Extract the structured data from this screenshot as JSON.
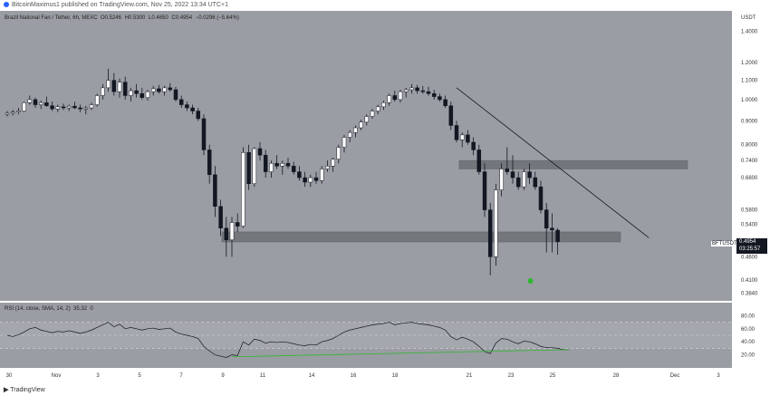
{
  "header": {
    "published_text": "BitcoinMaximus1 published on TradingView.com, Nov 25, 2022 13:34 UTC+1"
  },
  "legend": {
    "title": "Brazil National Fan / Tether, 6h, MEXC",
    "open_label": "O",
    "open_value": "0.5246",
    "high_label": "H",
    "high_value": "0.5300",
    "low_label": "L",
    "low_value": "0.4650",
    "close_label": "C",
    "close_value": "0.4954",
    "change_value": "−0.0296 (−5.64%)"
  },
  "rsi_legend": {
    "title": "RSI (14, close, SMA, 14, 2)",
    "value": "35.32",
    "value2": "0"
  },
  "price_axis": {
    "unit": "USDT",
    "ticks": [
      "1.4000",
      "1.2000",
      "1.1000",
      "1.0000",
      "0.9000",
      "0.8000",
      "0.7400",
      "0.6800",
      "0.5800",
      "0.5400",
      "0.4600",
      "0.4100",
      "0.3840"
    ]
  },
  "rsi_axis": {
    "ticks": [
      "80.00",
      "60.00",
      "40.00",
      "20.00"
    ]
  },
  "time_axis": {
    "ticks": [
      "30",
      "Nov",
      "3",
      "5",
      "7",
      "9",
      "11",
      "14",
      "16",
      "18",
      "21",
      "23",
      "25",
      "28",
      "Dec",
      "3"
    ]
  },
  "price_tag": {
    "symbol": "BFTUSDT",
    "price": "0.4954",
    "countdown": "03:25:57"
  },
  "footer": {
    "brand": "TradingView"
  },
  "colors": {
    "background": "#9a9da3",
    "bull_candle": "#ffffff",
    "bear_candle": "#131722",
    "zone": "#6f7277",
    "trendline": "#131722",
    "rsi_line": "#131722",
    "rsi_trend": "#2eb82e",
    "marker": "#2eb82e"
  },
  "chart_data": {
    "type": "candlestick",
    "title": "Brazil National Fan / Tether, 6h, MEXC",
    "y_scale": "log",
    "ylim": [
      0.37,
      1.55
    ],
    "x_tick_labels": [
      "30",
      "Nov",
      "3",
      "5",
      "7",
      "9",
      "11",
      "14",
      "16",
      "18",
      "21",
      "23",
      "25",
      "28",
      "Dec",
      "3"
    ],
    "candles": [
      {
        "o": 0.93,
        "h": 0.945,
        "l": 0.92,
        "c": 0.935
      },
      {
        "o": 0.935,
        "h": 0.95,
        "l": 0.925,
        "c": 0.94
      },
      {
        "o": 0.94,
        "h": 0.96,
        "l": 0.93,
        "c": 0.945
      },
      {
        "o": 0.945,
        "h": 0.99,
        "l": 0.94,
        "c": 0.985
      },
      {
        "o": 0.985,
        "h": 1.02,
        "l": 0.975,
        "c": 1.0
      },
      {
        "o": 1.0,
        "h": 1.01,
        "l": 0.96,
        "c": 0.975
      },
      {
        "o": 0.975,
        "h": 0.995,
        "l": 0.955,
        "c": 0.985
      },
      {
        "o": 0.985,
        "h": 1.015,
        "l": 0.965,
        "c": 0.97
      },
      {
        "o": 0.97,
        "h": 0.99,
        "l": 0.945,
        "c": 0.955
      },
      {
        "o": 0.955,
        "h": 0.975,
        "l": 0.94,
        "c": 0.965
      },
      {
        "o": 0.965,
        "h": 0.98,
        "l": 0.95,
        "c": 0.96
      },
      {
        "o": 0.96,
        "h": 0.975,
        "l": 0.945,
        "c": 0.968
      },
      {
        "o": 0.968,
        "h": 0.99,
        "l": 0.955,
        "c": 0.96
      },
      {
        "o": 0.96,
        "h": 0.975,
        "l": 0.94,
        "c": 0.955
      },
      {
        "o": 0.955,
        "h": 0.97,
        "l": 0.93,
        "c": 0.96
      },
      {
        "o": 0.96,
        "h": 0.985,
        "l": 0.95,
        "c": 0.975
      },
      {
        "o": 0.975,
        "h": 1.03,
        "l": 0.965,
        "c": 1.02
      },
      {
        "o": 1.02,
        "h": 1.08,
        "l": 1.0,
        "c": 1.06
      },
      {
        "o": 1.06,
        "h": 1.165,
        "l": 1.04,
        "c": 1.1
      },
      {
        "o": 1.1,
        "h": 1.14,
        "l": 1.02,
        "c": 1.04
      },
      {
        "o": 1.04,
        "h": 1.11,
        "l": 1.01,
        "c": 1.09
      },
      {
        "o": 1.09,
        "h": 1.12,
        "l": 1.0,
        "c": 1.02
      },
      {
        "o": 1.02,
        "h": 1.06,
        "l": 0.99,
        "c": 1.045
      },
      {
        "o": 1.045,
        "h": 1.08,
        "l": 1.01,
        "c": 1.03
      },
      {
        "o": 1.03,
        "h": 1.06,
        "l": 1.0,
        "c": 1.01
      },
      {
        "o": 1.01,
        "h": 1.05,
        "l": 0.995,
        "c": 1.04
      },
      {
        "o": 1.04,
        "h": 1.07,
        "l": 1.02,
        "c": 1.055
      },
      {
        "o": 1.055,
        "h": 1.075,
        "l": 1.03,
        "c": 1.04
      },
      {
        "o": 1.04,
        "h": 1.07,
        "l": 1.02,
        "c": 1.06
      },
      {
        "o": 1.06,
        "h": 1.085,
        "l": 1.04,
        "c": 1.05
      },
      {
        "o": 1.05,
        "h": 1.065,
        "l": 0.99,
        "c": 1.0
      },
      {
        "o": 1.0,
        "h": 1.02,
        "l": 0.96,
        "c": 0.975
      },
      {
        "o": 0.975,
        "h": 0.99,
        "l": 0.945,
        "c": 0.96
      },
      {
        "o": 0.96,
        "h": 0.975,
        "l": 0.93,
        "c": 0.945
      },
      {
        "o": 0.945,
        "h": 0.96,
        "l": 0.9,
        "c": 0.91
      },
      {
        "o": 0.91,
        "h": 0.93,
        "l": 0.76,
        "c": 0.78
      },
      {
        "o": 0.78,
        "h": 0.8,
        "l": 0.66,
        "c": 0.69
      },
      {
        "o": 0.69,
        "h": 0.72,
        "l": 0.56,
        "c": 0.59
      },
      {
        "o": 0.59,
        "h": 0.61,
        "l": 0.51,
        "c": 0.53
      },
      {
        "o": 0.53,
        "h": 0.56,
        "l": 0.46,
        "c": 0.5
      },
      {
        "o": 0.5,
        "h": 0.56,
        "l": 0.46,
        "c": 0.545
      },
      {
        "o": 0.545,
        "h": 0.57,
        "l": 0.52,
        "c": 0.535
      },
      {
        "o": 0.535,
        "h": 0.79,
        "l": 0.53,
        "c": 0.77
      },
      {
        "o": 0.77,
        "h": 0.8,
        "l": 0.64,
        "c": 0.66
      },
      {
        "o": 0.66,
        "h": 0.79,
        "l": 0.65,
        "c": 0.785
      },
      {
        "o": 0.785,
        "h": 0.81,
        "l": 0.74,
        "c": 0.76
      },
      {
        "o": 0.76,
        "h": 0.78,
        "l": 0.68,
        "c": 0.7
      },
      {
        "o": 0.7,
        "h": 0.74,
        "l": 0.68,
        "c": 0.73
      },
      {
        "o": 0.73,
        "h": 0.76,
        "l": 0.71,
        "c": 0.72
      },
      {
        "o": 0.72,
        "h": 0.74,
        "l": 0.69,
        "c": 0.73
      },
      {
        "o": 0.73,
        "h": 0.75,
        "l": 0.71,
        "c": 0.72
      },
      {
        "o": 0.72,
        "h": 0.735,
        "l": 0.69,
        "c": 0.7
      },
      {
        "o": 0.7,
        "h": 0.72,
        "l": 0.67,
        "c": 0.68
      },
      {
        "o": 0.68,
        "h": 0.7,
        "l": 0.65,
        "c": 0.665
      },
      {
        "o": 0.665,
        "h": 0.69,
        "l": 0.65,
        "c": 0.68
      },
      {
        "o": 0.68,
        "h": 0.7,
        "l": 0.66,
        "c": 0.67
      },
      {
        "o": 0.67,
        "h": 0.72,
        "l": 0.66,
        "c": 0.71
      },
      {
        "o": 0.71,
        "h": 0.74,
        "l": 0.7,
        "c": 0.72
      },
      {
        "o": 0.72,
        "h": 0.75,
        "l": 0.7,
        "c": 0.745
      },
      {
        "o": 0.745,
        "h": 0.8,
        "l": 0.73,
        "c": 0.79
      },
      {
        "o": 0.79,
        "h": 0.84,
        "l": 0.77,
        "c": 0.83
      },
      {
        "o": 0.83,
        "h": 0.86,
        "l": 0.81,
        "c": 0.85
      },
      {
        "o": 0.85,
        "h": 0.88,
        "l": 0.83,
        "c": 0.87
      },
      {
        "o": 0.87,
        "h": 0.905,
        "l": 0.86,
        "c": 0.895
      },
      {
        "o": 0.895,
        "h": 0.93,
        "l": 0.88,
        "c": 0.92
      },
      {
        "o": 0.92,
        "h": 0.955,
        "l": 0.91,
        "c": 0.945
      },
      {
        "o": 0.945,
        "h": 0.975,
        "l": 0.93,
        "c": 0.965
      },
      {
        "o": 0.965,
        "h": 0.995,
        "l": 0.95,
        "c": 0.985
      },
      {
        "o": 0.985,
        "h": 1.03,
        "l": 0.97,
        "c": 1.02
      },
      {
        "o": 1.02,
        "h": 1.045,
        "l": 0.99,
        "c": 1.0
      },
      {
        "o": 1.0,
        "h": 1.05,
        "l": 0.985,
        "c": 1.04
      },
      {
        "o": 1.04,
        "h": 1.06,
        "l": 1.01,
        "c": 1.05
      },
      {
        "o": 1.05,
        "h": 1.08,
        "l": 1.03,
        "c": 1.06
      },
      {
        "o": 1.06,
        "h": 1.075,
        "l": 1.03,
        "c": 1.045
      },
      {
        "o": 1.045,
        "h": 1.07,
        "l": 1.03,
        "c": 1.04
      },
      {
        "o": 1.04,
        "h": 1.065,
        "l": 1.02,
        "c": 1.03
      },
      {
        "o": 1.03,
        "h": 1.05,
        "l": 1.0,
        "c": 1.015
      },
      {
        "o": 1.015,
        "h": 1.03,
        "l": 0.99,
        "c": 1.0
      },
      {
        "o": 1.0,
        "h": 1.02,
        "l": 0.96,
        "c": 0.97
      },
      {
        "o": 0.97,
        "h": 0.99,
        "l": 0.86,
        "c": 0.88
      },
      {
        "o": 0.88,
        "h": 0.9,
        "l": 0.81,
        "c": 0.82
      },
      {
        "o": 0.82,
        "h": 0.85,
        "l": 0.79,
        "c": 0.84
      },
      {
        "o": 0.84,
        "h": 0.86,
        "l": 0.8,
        "c": 0.81
      },
      {
        "o": 0.81,
        "h": 0.83,
        "l": 0.76,
        "c": 0.78
      },
      {
        "o": 0.78,
        "h": 0.8,
        "l": 0.69,
        "c": 0.7
      },
      {
        "o": 0.7,
        "h": 0.73,
        "l": 0.56,
        "c": 0.58
      },
      {
        "o": 0.58,
        "h": 0.6,
        "l": 0.42,
        "c": 0.46
      },
      {
        "o": 0.46,
        "h": 0.66,
        "l": 0.44,
        "c": 0.64
      },
      {
        "o": 0.64,
        "h": 0.73,
        "l": 0.62,
        "c": 0.71
      },
      {
        "o": 0.71,
        "h": 0.79,
        "l": 0.69,
        "c": 0.7
      },
      {
        "o": 0.7,
        "h": 0.76,
        "l": 0.66,
        "c": 0.68
      },
      {
        "o": 0.68,
        "h": 0.7,
        "l": 0.64,
        "c": 0.65
      },
      {
        "o": 0.65,
        "h": 0.71,
        "l": 0.64,
        "c": 0.7
      },
      {
        "o": 0.7,
        "h": 0.73,
        "l": 0.66,
        "c": 0.68
      },
      {
        "o": 0.68,
        "h": 0.7,
        "l": 0.64,
        "c": 0.65
      },
      {
        "o": 0.65,
        "h": 0.67,
        "l": 0.57,
        "c": 0.58
      },
      {
        "o": 0.58,
        "h": 0.6,
        "l": 0.47,
        "c": 0.53
      },
      {
        "o": 0.53,
        "h": 0.57,
        "l": 0.47,
        "c": 0.525
      },
      {
        "o": 0.5246,
        "h": 0.53,
        "l": 0.465,
        "c": 0.4954
      }
    ],
    "zones": [
      {
        "low": 0.495,
        "high": 0.52
      },
      {
        "low": 0.71,
        "high": 0.74
      }
    ],
    "trendline": {
      "from_index": 80,
      "from_price": 1.06,
      "to_index": 111,
      "to_price": 0.51
    },
    "marker_index": 93,
    "rsi": {
      "ylim": [
        0,
        100
      ],
      "bands": [
        70,
        30
      ],
      "midline": 50,
      "values": [
        50,
        48,
        51,
        55,
        60,
        62,
        58,
        56,
        54,
        56,
        55,
        57,
        55,
        53,
        55,
        58,
        62,
        66,
        70,
        63,
        67,
        60,
        62,
        60,
        58,
        60,
        61,
        59,
        60,
        61,
        55,
        52,
        50,
        48,
        45,
        33,
        26,
        20,
        18,
        16,
        20,
        19,
        40,
        35,
        44,
        42,
        38,
        40,
        39,
        40,
        39,
        37,
        35,
        34,
        36,
        35,
        40,
        42,
        45,
        50,
        55,
        58,
        60,
        62,
        64,
        66,
        67,
        68,
        70,
        66,
        68,
        69,
        70,
        68,
        67,
        66,
        64,
        62,
        58,
        48,
        43,
        47,
        44,
        40,
        33,
        25,
        22,
        38,
        45,
        44,
        40,
        37,
        41,
        40,
        37,
        33,
        31,
        31,
        30,
        28,
        28
      ],
      "trendline": {
        "from_index": 40,
        "from_value": 17,
        "to_index": 100,
        "to_value": 28
      }
    }
  }
}
